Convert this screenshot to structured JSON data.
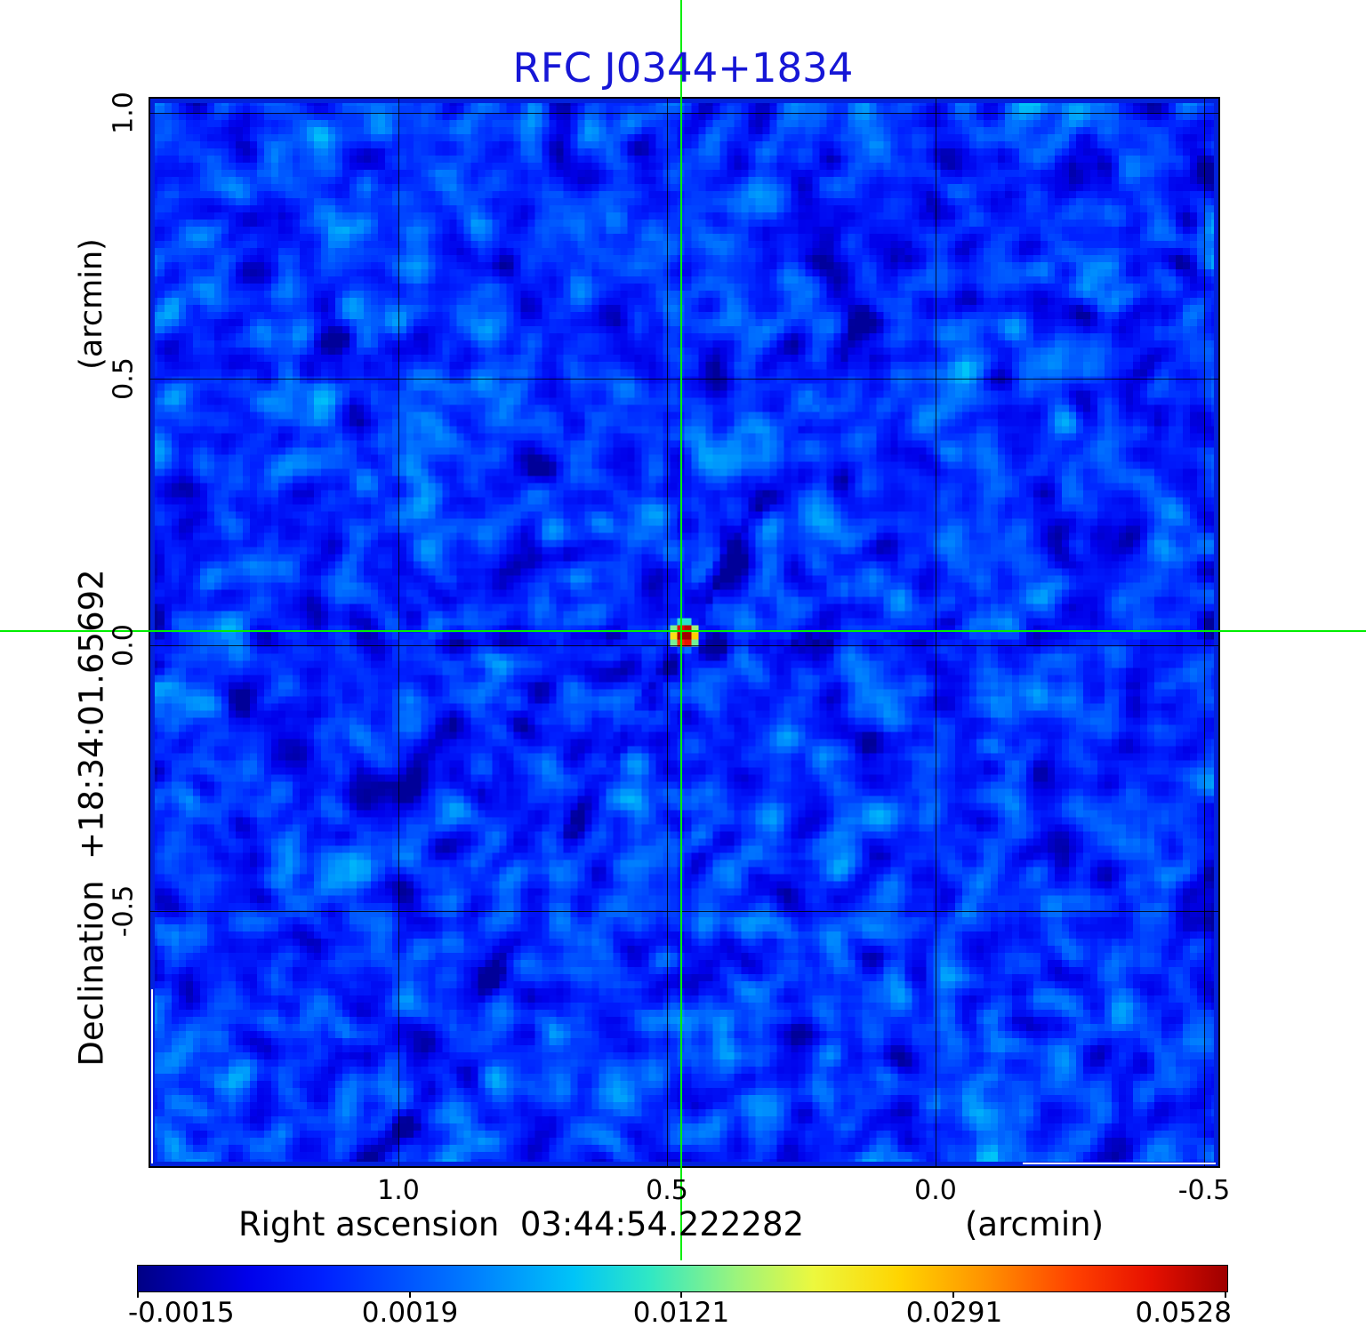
{
  "title": {
    "text": "RFC J0344+1834",
    "color": "#1616D6"
  },
  "axes": {
    "x": {
      "label": "Right ascension  03:44:54.222282",
      "unit": "(arcmin)",
      "ticks": [
        "1.0",
        "0.5",
        "0.0",
        "-0.5"
      ]
    },
    "y": {
      "label": "Declination  +18:34:01.65692",
      "unit": "(arcmin)",
      "ticks": [
        "1.0",
        "0.5",
        "0.0",
        "-0.5"
      ]
    }
  },
  "colorbar": {
    "tick_labels": [
      "-0.0015",
      "0.0019",
      "0.0121",
      "0.0291",
      "0.0528"
    ]
  },
  "crosshair_color": "#00EE00",
  "chart_data": {
    "type": "heatmap",
    "title": "RFC J0344+1834",
    "xlabel": "Right ascension  03:44:54.222282",
    "xlabel_unit": "(arcmin)",
    "ylabel": "Declination  +18:34:01.65692",
    "ylabel_unit": "(arcmin)",
    "x_tick_values_arcmin": [
      1.0,
      0.5,
      0.0,
      -0.5
    ],
    "y_tick_values_arcmin": [
      1.0,
      0.5,
      0.0,
      -0.5
    ],
    "x_range_arcmin": [
      1.47,
      -0.52
    ],
    "y_range_arcmin": [
      -0.98,
      1.03
    ],
    "grid": true,
    "colormap": "jet-like rainbow (dark blue to dark red)",
    "colorbar_position": "bottom",
    "colorbar_tick_values": [
      -0.0015,
      0.0019,
      0.0121,
      0.0291,
      0.0528
    ],
    "value_min": -0.0015,
    "value_max": 0.0528,
    "intensity_stretch": "quadratic: value = 0.0543*f^2 - 0.0015 for colorbar fraction f in [0,1]",
    "peak_source": {
      "ra_offset_arcmin": 0.47,
      "dec_offset_arcmin": 0.03,
      "peak_value": 0.0528,
      "appearance": "dark-red core with orange/yellow ring and cyan halo"
    },
    "crosshair": {
      "ra_offset_arcmin": 0.47,
      "dec_offset_arcmin": 0.03,
      "color": "#00EE00"
    },
    "background": {
      "mean_value": 0.0006,
      "noise_sigma": 0.0007,
      "appearance": "mottled blue noise field"
    },
    "negative_sidelobes": [
      {
        "orientation": "diagonal upper-right to lower-left through source",
        "strength": "strong"
      },
      {
        "orientation": "horizontal through source",
        "strength": "medium"
      },
      {
        "orientation": "diagonal upper-left to lower-right through source",
        "strength": "faint"
      },
      {
        "orientation": "vertical through source",
        "strength": "faint"
      }
    ]
  }
}
